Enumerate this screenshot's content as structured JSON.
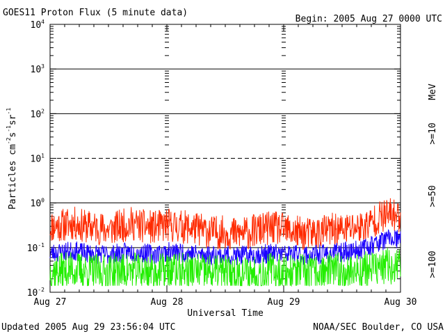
{
  "header": {
    "title": "GOES11 Proton Flux (5 minute data)",
    "begin": "Begin: 2005 Aug 27 0000 UTC"
  },
  "footer": {
    "updated": "Updated 2005 Aug 29 23:56:04 UTC",
    "source": "NOAA/SEC Boulder, CO USA"
  },
  "axes": {
    "xlabel": "Universal Time",
    "ylabel_main": "Particles cm",
    "ylabel_e1": "-2",
    "ylabel_mid1": "s",
    "ylabel_e2": "-1",
    "ylabel_mid2": "sr",
    "ylabel_e3": "-1",
    "y_ticks": [
      {
        "base": "10",
        "exp": "-2"
      },
      {
        "base": "10",
        "exp": "-1"
      },
      {
        "base": "10",
        "exp": "0"
      },
      {
        "base": "10",
        "exp": "1"
      },
      {
        "base": "10",
        "exp": "2"
      },
      {
        "base": "10",
        "exp": "3"
      },
      {
        "base": "10",
        "exp": "4"
      }
    ],
    "x_ticks": [
      "Aug 27",
      "Aug 28",
      "Aug 29",
      "Aug 30"
    ]
  },
  "legend": {
    "unit": "MeV",
    "items": [
      {
        "label": ">=10",
        "color": "#ff2a00"
      },
      {
        "label": ">=50",
        "color": "#1a00ff"
      },
      {
        "label": ">=100",
        "color": "#22ee00"
      }
    ]
  },
  "chart_data": {
    "type": "line",
    "title": "GOES11 Proton Flux (5 minute data)",
    "xlabel": "Universal Time",
    "ylabel": "Particles cm^-2 s^-1 sr^-1",
    "x_unit": "days since 2005 Aug 27 0000 UTC",
    "xlim": [
      0,
      3
    ],
    "ylim": [
      0.01,
      10000
    ],
    "yscale": "log",
    "categories": [
      "Aug 27",
      "Aug 28",
      "Aug 29",
      "Aug 30"
    ],
    "reference_lines": [
      {
        "value": 1000,
        "style": "solid"
      },
      {
        "value": 100,
        "style": "solid"
      },
      {
        "value": 10,
        "style": "dashed"
      },
      {
        "value": 1,
        "style": "solid"
      },
      {
        "value": 0.1,
        "style": "solid"
      }
    ],
    "series": [
      {
        "name": ">=10 MeV",
        "color": "#ff2a00",
        "x": [
          0,
          0.1,
          0.2,
          0.3,
          0.4,
          0.5,
          0.6,
          0.7,
          0.8,
          0.9,
          1.0,
          1.1,
          1.2,
          1.3,
          1.4,
          1.5,
          1.6,
          1.7,
          1.8,
          1.9,
          2.0,
          2.1,
          2.2,
          2.3,
          2.4,
          2.5,
          2.6,
          2.7,
          2.8,
          2.9,
          3.0
        ],
        "values": [
          0.3,
          0.32,
          0.35,
          0.3,
          0.28,
          0.25,
          0.3,
          0.35,
          0.3,
          0.28,
          0.32,
          0.3,
          0.28,
          0.25,
          0.22,
          0.22,
          0.2,
          0.22,
          0.25,
          0.28,
          0.25,
          0.22,
          0.2,
          0.22,
          0.25,
          0.25,
          0.28,
          0.3,
          0.45,
          0.55,
          0.5
        ],
        "noise_db": 0.55,
        "seed": 11
      },
      {
        "name": ">=50 MeV",
        "color": "#1a00ff",
        "x": [
          0,
          0.1,
          0.2,
          0.3,
          0.4,
          0.5,
          0.6,
          0.7,
          0.8,
          0.9,
          1.0,
          1.1,
          1.2,
          1.3,
          1.4,
          1.5,
          1.6,
          1.7,
          1.8,
          1.9,
          2.0,
          2.1,
          2.2,
          2.3,
          2.4,
          2.5,
          2.6,
          2.7,
          2.8,
          2.9,
          3.0
        ],
        "values": [
          0.075,
          0.08,
          0.085,
          0.075,
          0.072,
          0.07,
          0.075,
          0.08,
          0.075,
          0.072,
          0.08,
          0.078,
          0.075,
          0.07,
          0.068,
          0.068,
          0.065,
          0.068,
          0.07,
          0.075,
          0.072,
          0.07,
          0.068,
          0.07,
          0.075,
          0.078,
          0.085,
          0.1,
          0.13,
          0.16,
          0.15
        ],
        "noise_db": 0.32,
        "seed": 23
      },
      {
        "name": ">=100 MeV",
        "color": "#22ee00",
        "x": [
          0,
          0.1,
          0.2,
          0.3,
          0.4,
          0.5,
          0.6,
          0.7,
          0.8,
          0.9,
          1.0,
          1.1,
          1.2,
          1.3,
          1.4,
          1.5,
          1.6,
          1.7,
          1.8,
          1.9,
          2.0,
          2.1,
          2.2,
          2.3,
          2.4,
          2.5,
          2.6,
          2.7,
          2.8,
          2.9,
          3.0
        ],
        "values": [
          0.03,
          0.03,
          0.032,
          0.03,
          0.028,
          0.028,
          0.03,
          0.03,
          0.03,
          0.028,
          0.03,
          0.03,
          0.03,
          0.028,
          0.027,
          0.027,
          0.026,
          0.027,
          0.028,
          0.03,
          0.028,
          0.028,
          0.027,
          0.028,
          0.03,
          0.03,
          0.03,
          0.032,
          0.035,
          0.038,
          0.035
        ],
        "noise_db": 0.6,
        "seed": 37
      }
    ]
  }
}
